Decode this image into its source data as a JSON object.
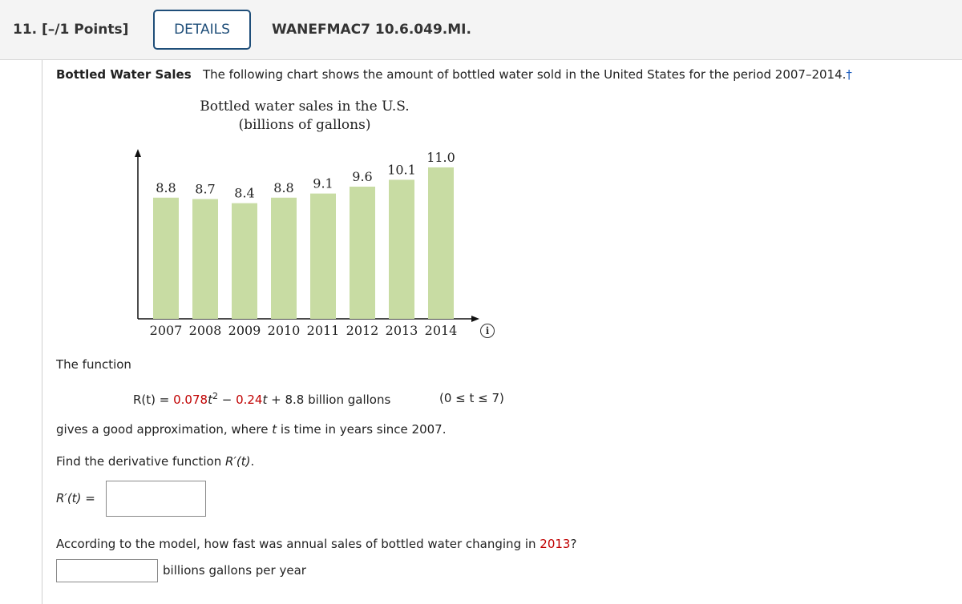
{
  "header": {
    "question_number": "11. [–/1 Points]",
    "details_label": "DETAILS",
    "question_id": "WANEFMAC7 10.6.049.MI."
  },
  "problem": {
    "title": "Bottled Water Sales",
    "intro": "The following chart shows the amount of bottled water sold in the United States for the period 2007–2014.",
    "dagger": "†",
    "function_intro": "The function",
    "formula": {
      "lhs": "R(t) = ",
      "coef1": "0.078",
      "t1": "t",
      "exp": "2",
      "minus": " − ",
      "coef2": "0.24",
      "t2": "t",
      "rest": " + 8.8 billion gallons",
      "domain": "(0 ≤ t ≤ 7)"
    },
    "approx_pre": "gives a good approximation, where ",
    "approx_var": "t",
    "approx_post": " is time in years since 2007.",
    "find_pre": "Find the derivative function ",
    "find_fn": "R′(t)",
    "find_post": ".",
    "answer_label": "R′(t)",
    "answer_eq": " =",
    "answer_value": "",
    "q2_pre": "According to the model, how fast was annual sales of bottled water changing in ",
    "q2_year": "2013",
    "q2_post": "?",
    "answer2_value": "",
    "answer2_unit": "billions gallons per year"
  },
  "info_icon": "info-icon",
  "colors": {
    "bar": "#c8dca3",
    "accent_red": "#c00000",
    "details_border": "#1f4e79"
  },
  "chart_data": {
    "type": "bar",
    "title_line1": "Bottled water sales in the U.S.",
    "title_line2": "(billions of gallons)",
    "categories": [
      "2007",
      "2008",
      "2009",
      "2010",
      "2011",
      "2012",
      "2013",
      "2014"
    ],
    "values": [
      8.8,
      8.7,
      8.4,
      8.8,
      9.1,
      9.6,
      10.1,
      11.0
    ],
    "value_labels": [
      "8.8",
      "8.7",
      "8.4",
      "8.8",
      "9.1",
      "9.6",
      "10.1",
      "11.0"
    ],
    "xlabel": "",
    "ylabel": "",
    "ylim": [
      0,
      11.8
    ],
    "grid": false
  }
}
